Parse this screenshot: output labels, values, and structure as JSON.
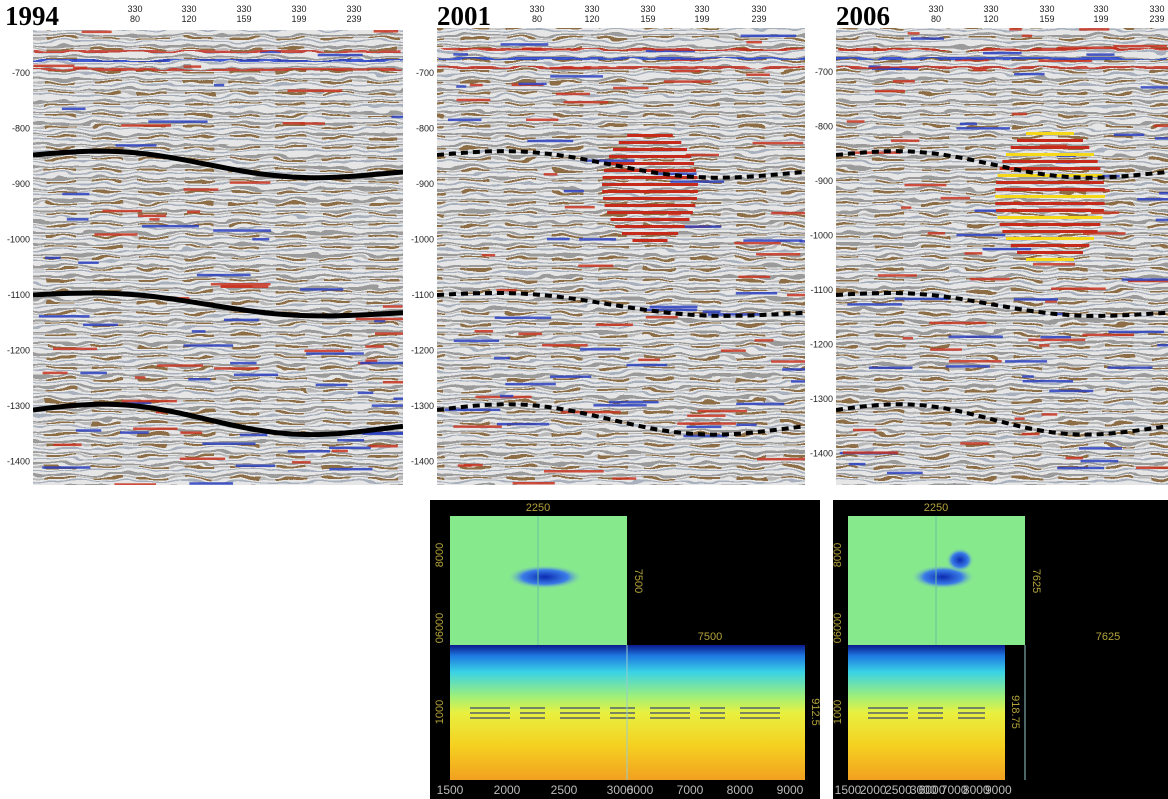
{
  "panels": [
    {
      "year": "1994",
      "depth_ticks": [
        "-700",
        "-800",
        "-900",
        "-1000",
        "-1100",
        "-1200",
        "-1300",
        "-1400"
      ],
      "top_ticks": [
        {
          "inline": "330",
          "xline": "80"
        },
        {
          "inline": "330",
          "xline": "120"
        },
        {
          "inline": "330",
          "xline": "159"
        },
        {
          "inline": "330",
          "xline": "199"
        },
        {
          "inline": "330",
          "xline": "239"
        }
      ]
    },
    {
      "year": "2001",
      "depth_ticks": [
        "-700",
        "-800",
        "-900",
        "-1000",
        "-1100",
        "-1200",
        "-1300",
        "-1400"
      ],
      "top_ticks": [
        {
          "inline": "330",
          "xline": "80"
        },
        {
          "inline": "330",
          "xline": "120"
        },
        {
          "inline": "330",
          "xline": "159"
        },
        {
          "inline": "330",
          "xline": "199"
        },
        {
          "inline": "330",
          "xline": "239"
        }
      ]
    },
    {
      "year": "2006",
      "depth_ticks": [
        "-700",
        "-800",
        "-900",
        "-1000",
        "-1100",
        "-1200",
        "-1300",
        "-1400"
      ],
      "top_ticks": [
        {
          "inline": "330",
          "xline": "80"
        },
        {
          "inline": "330",
          "xline": "120"
        },
        {
          "inline": "330",
          "xline": "159"
        },
        {
          "inline": "330",
          "xline": "199"
        },
        {
          "inline": "330",
          "xline": "239"
        }
      ]
    }
  ],
  "maps": [
    {
      "top_label": "2250",
      "y_labels": [
        "8000",
        "06000"
      ],
      "slice_label": "7500",
      "strip_label": "7500",
      "depth_label": "912.5",
      "depth_tick": "1000",
      "x_ticks": [
        "1500",
        "2000",
        "2500",
        "3000",
        "6000",
        "7000",
        "8000",
        "9000"
      ]
    },
    {
      "top_label": "2250",
      "y_labels": [
        "8000",
        "06000"
      ],
      "slice_label": "7625",
      "strip_label": "7625",
      "depth_label": "918.75",
      "depth_tick": "1000",
      "x_ticks": [
        "1500",
        "2000",
        "2500",
        "3000",
        "6000",
        "7000",
        "8000",
        "9000"
      ]
    }
  ]
}
